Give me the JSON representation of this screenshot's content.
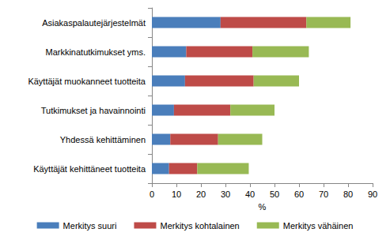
{
  "chart_data": {
    "type": "bar",
    "orientation": "horizontal",
    "stacked": true,
    "x_label": "%",
    "categories": [
      "Asiakaspalautejärjestelmät",
      "Markkinatutkimukset yms.",
      "Käyttäjät muokanneet tuotteita",
      "Tutkimukset ja havainnointi",
      "Yhdessä kehittäminen",
      "Käyttäjät kehittäneet tuotteita"
    ],
    "series": [
      {
        "name": "Merkitys suuri",
        "color": "#4a7ebb",
        "values": [
          28,
          14,
          13.5,
          9,
          7.5,
          7
        ]
      },
      {
        "name": "Merkitys kohtalainen",
        "color": "#be4b48",
        "values": [
          35,
          27,
          28,
          23,
          19.5,
          11.5
        ]
      },
      {
        "name": "Merkitys vähäinen",
        "color": "#98b954",
        "values": [
          18,
          23,
          18.5,
          18,
          18,
          21
        ]
      }
    ],
    "xlim": [
      0,
      90
    ],
    "xticks": [
      0,
      10,
      20,
      30,
      40,
      50,
      60,
      70,
      80,
      90
    ],
    "grid": false,
    "legend": "bottom"
  }
}
